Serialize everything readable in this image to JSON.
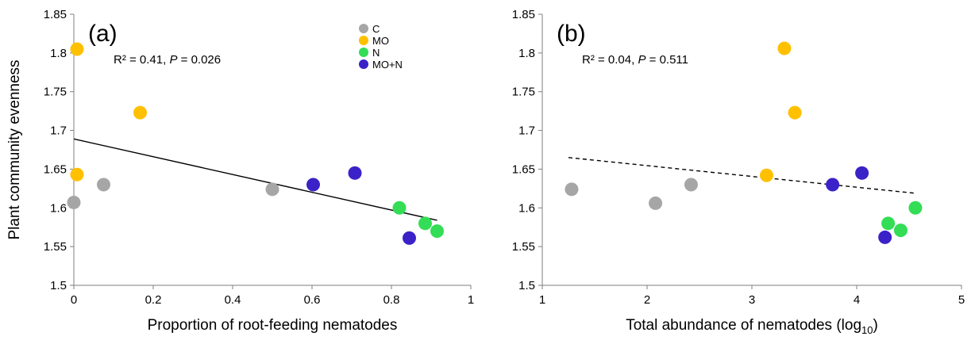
{
  "chart_data": [
    {
      "type": "scatter",
      "panel_label": "(a)",
      "annotation": {
        "r2_text": "R² = 0.41, ",
        "p_label": "P",
        "p_text": " = 0.026"
      },
      "xlabel": "Proportion of root-feeding nematodes",
      "ylabel": "Plant community evenness",
      "xlim": [
        0,
        1
      ],
      "ylim": [
        1.5,
        1.85
      ],
      "xticks": [
        0,
        0.2,
        0.4,
        0.6,
        0.8,
        1
      ],
      "xtick_labels": [
        "0",
        "0.2",
        "0.4",
        "0.6",
        "0.8",
        "1"
      ],
      "yticks": [
        1.5,
        1.55,
        1.6,
        1.65,
        1.7,
        1.75,
        1.8,
        1.85
      ],
      "ytick_labels": [
        "1.5",
        "1.55",
        "1.6",
        "1.65",
        "1.7",
        "1.75",
        "1.8",
        "1.85"
      ],
      "grid": false,
      "legend_position": "top-right",
      "trendline": {
        "style": "solid",
        "x": [
          0,
          0.915
        ],
        "y": [
          1.689,
          1.584
        ]
      },
      "series": [
        {
          "name": "C",
          "color": "#a6a6a6",
          "x": [
            0.0,
            0.075,
            0.5
          ],
          "y": [
            1.607,
            1.63,
            1.624
          ]
        },
        {
          "name": "MO",
          "color": "#ffc000",
          "x": [
            0.008,
            0.008,
            0.167
          ],
          "y": [
            1.805,
            1.643,
            1.723
          ]
        },
        {
          "name": "N",
          "color": "#33dd55",
          "x": [
            0.82,
            0.885,
            0.915
          ],
          "y": [
            1.6,
            1.58,
            1.57
          ]
        },
        {
          "name": "MO+N",
          "color": "#3a22c8",
          "x": [
            0.603,
            0.708,
            0.845
          ],
          "y": [
            1.63,
            1.645,
            1.561
          ]
        }
      ]
    },
    {
      "type": "scatter",
      "panel_label": "(b)",
      "annotation": {
        "r2_text": "R² = 0.04, ",
        "p_label": "P",
        "p_text": " = 0.511"
      },
      "xlabel_main": "Total abundance of nematodes (log",
      "xlabel_sub": "10",
      "xlabel_end": ")",
      "xlim": [
        1,
        5
      ],
      "ylim": [
        1.5,
        1.85
      ],
      "xticks": [
        1,
        2,
        3,
        4,
        5
      ],
      "xtick_labels": [
        "1",
        "2",
        "3",
        "4",
        "5"
      ],
      "yticks": [
        1.5,
        1.55,
        1.6,
        1.65,
        1.7,
        1.75,
        1.8,
        1.85
      ],
      "ytick_labels": [
        "1.5",
        "1.55",
        "1.6",
        "1.65",
        "1.7",
        "1.75",
        "1.8",
        "1.85"
      ],
      "grid": false,
      "trendline": {
        "style": "dashed",
        "x": [
          1.25,
          4.55
        ],
        "y": [
          1.665,
          1.619
        ]
      },
      "series": [
        {
          "name": "C",
          "color": "#a6a6a6",
          "x": [
            1.28,
            2.08,
            2.42
          ],
          "y": [
            1.624,
            1.606,
            1.63
          ]
        },
        {
          "name": "MO",
          "color": "#ffc000",
          "x": [
            3.14,
            3.31,
            3.41
          ],
          "y": [
            1.642,
            1.806,
            1.723
          ]
        },
        {
          "name": "N",
          "color": "#33dd55",
          "x": [
            4.3,
            4.42,
            4.56
          ],
          "y": [
            1.58,
            1.571,
            1.6
          ]
        },
        {
          "name": "MO+N",
          "color": "#3a22c8",
          "x": [
            3.77,
            4.05,
            4.27
          ],
          "y": [
            1.63,
            1.645,
            1.562
          ]
        }
      ]
    }
  ]
}
